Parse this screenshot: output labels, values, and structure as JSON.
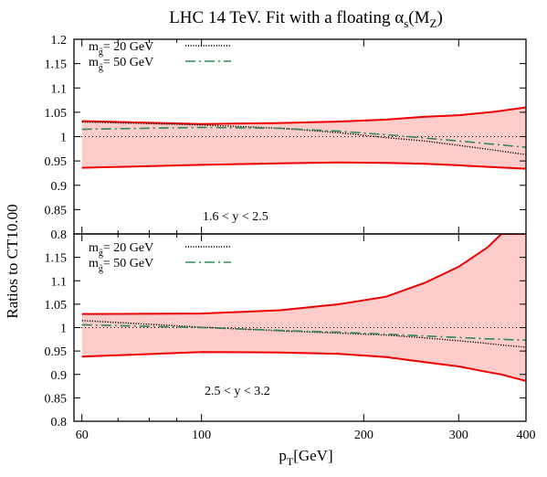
{
  "figure": {
    "title_main": "LHC 14 TeV. Fit with a floating α",
    "title_sub": "s",
    "title_arg": "(M",
    "title_arg_sub": "Z",
    "title_close": ")",
    "ylabel": "Ratios to CT10.00",
    "xlabel_main": "p",
    "xlabel_sub": "T",
    "xlabel_unit": "[GeV]"
  },
  "colors": {
    "band_fill": "#ffcccc",
    "band_edge": "#ee0000",
    "curve_20": "#000000",
    "curve_50": "#2e8b57",
    "reference": "#000000"
  },
  "chart_data": [
    {
      "type": "line",
      "panel": "upper",
      "annotation": "1.6 < y < 2.5",
      "xscale": "log",
      "xlim": [
        58,
        400
      ],
      "ylim": [
        0.8,
        1.2
      ],
      "yticks": [
        "0.8",
        "0.85",
        "0.9",
        "0.95",
        "1",
        "1.05",
        "1.1",
        "1.15",
        "1.2"
      ],
      "x": [
        60,
        100,
        140,
        180,
        220,
        260,
        300,
        350,
        400
      ],
      "band": {
        "upper": [
          1.032,
          1.026,
          1.028,
          1.031,
          1.035,
          1.041,
          1.044,
          1.051,
          1.06
        ],
        "lower": [
          0.936,
          0.942,
          0.945,
          0.947,
          0.946,
          0.944,
          0.941,
          0.937,
          0.934
        ]
      },
      "series": [
        {
          "name": "m_g̃ = 20 GeV",
          "legend_sym": "m",
          "legend_sub": "g̃",
          "legend_value": "= 20 GeV",
          "values": [
            1.03,
            1.024,
            1.017,
            1.008,
            0.998,
            0.991,
            0.982,
            0.972,
            0.963
          ]
        },
        {
          "name": "m_g̃ = 50 GeV",
          "legend_sym": "m",
          "legend_sub": "g̃",
          "legend_value": "= 50 GeV",
          "values": [
            1.015,
            1.019,
            1.017,
            1.011,
            1.004,
            0.997,
            0.991,
            0.984,
            0.978
          ]
        }
      ]
    },
    {
      "type": "line",
      "panel": "lower",
      "annotation": "2.5 < y < 3.2",
      "xscale": "log",
      "xlim": [
        58,
        400
      ],
      "ylim": [
        0.8,
        1.2
      ],
      "yticks": [
        "0.8",
        "0.85",
        "0.9",
        "0.95",
        "1",
        "1.05",
        "1.1",
        "1.15"
      ],
      "xticks": [
        "60",
        "100",
        "200",
        "300",
        "400"
      ],
      "x": [
        60,
        100,
        140,
        180,
        220,
        260,
        300,
        340,
        360,
        400
      ],
      "band": {
        "upper": [
          1.029,
          1.03,
          1.037,
          1.05,
          1.066,
          1.096,
          1.13,
          1.172,
          1.2,
          1.2
        ],
        "lower": [
          0.938,
          0.948,
          0.947,
          0.944,
          0.937,
          0.926,
          0.917,
          0.905,
          0.9,
          0.886
        ]
      },
      "series": [
        {
          "name": "m_g̃ = 20 GeV",
          "legend_sym": "m",
          "legend_sub": "g̃",
          "legend_value": "= 20 GeV",
          "values": [
            1.015,
            1.001,
            0.993,
            0.988,
            0.984,
            0.978,
            0.972,
            0.966,
            0.963,
            0.958
          ]
        },
        {
          "name": "m_g̃ = 50 GeV",
          "legend_sym": "m",
          "legend_sub": "g̃",
          "legend_value": "= 50 GeV",
          "values": [
            1.006,
            1.0,
            0.994,
            0.99,
            0.986,
            0.982,
            0.979,
            0.976,
            0.975,
            0.973
          ]
        }
      ]
    }
  ]
}
